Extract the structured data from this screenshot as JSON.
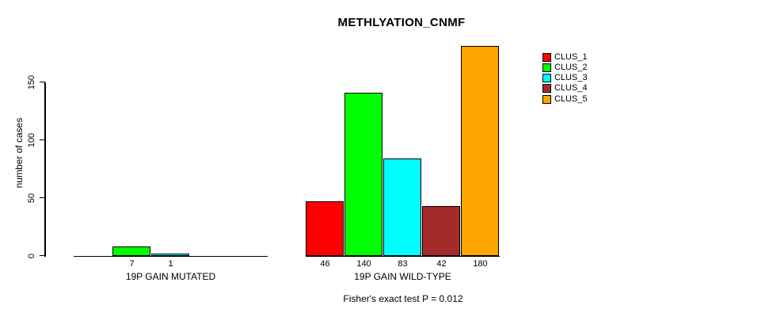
{
  "title": "METHLYATION_CNMF",
  "footer": "Fisher's exact test P = 0.012",
  "y_axis": {
    "label": "number of cases",
    "ticks": [
      "0",
      "50",
      "100",
      "150"
    ]
  },
  "legend": {
    "entries": [
      {
        "label": "CLUS_1",
        "color": "#FF0000"
      },
      {
        "label": "CLUS_2",
        "color": "#00FF00"
      },
      {
        "label": "CLUS_3",
        "color": "#00FFFF"
      },
      {
        "label": "CLUS_4",
        "color": "#A52A2A"
      },
      {
        "label": "CLUS_5",
        "color": "#FFA500"
      }
    ]
  },
  "chart_data": {
    "type": "bar",
    "title": "METHLYATION_CNMF",
    "ylabel": "number of cases",
    "ylim": [
      0,
      180
    ],
    "yticks": [
      0,
      50,
      100,
      150
    ],
    "grid": false,
    "legend_position": "topright",
    "series_names": [
      "CLUS_1",
      "CLUS_2",
      "CLUS_3",
      "CLUS_4",
      "CLUS_5"
    ],
    "colors": [
      "#FF0000",
      "#00FF00",
      "#00FFFF",
      "#A52A2A",
      "#FFA500"
    ],
    "groups": [
      {
        "label": "19P GAIN MUTATED",
        "values": [
          0,
          7,
          1,
          0,
          0
        ],
        "value_labels": [
          "",
          "7",
          "1",
          "",
          ""
        ]
      },
      {
        "label": "19P GAIN WILD-TYPE",
        "values": [
          46,
          140,
          83,
          42,
          180
        ],
        "value_labels": [
          "46",
          "140",
          "83",
          "42",
          "180"
        ]
      }
    ],
    "annotation": "Fisher's exact test P = 0.012"
  }
}
